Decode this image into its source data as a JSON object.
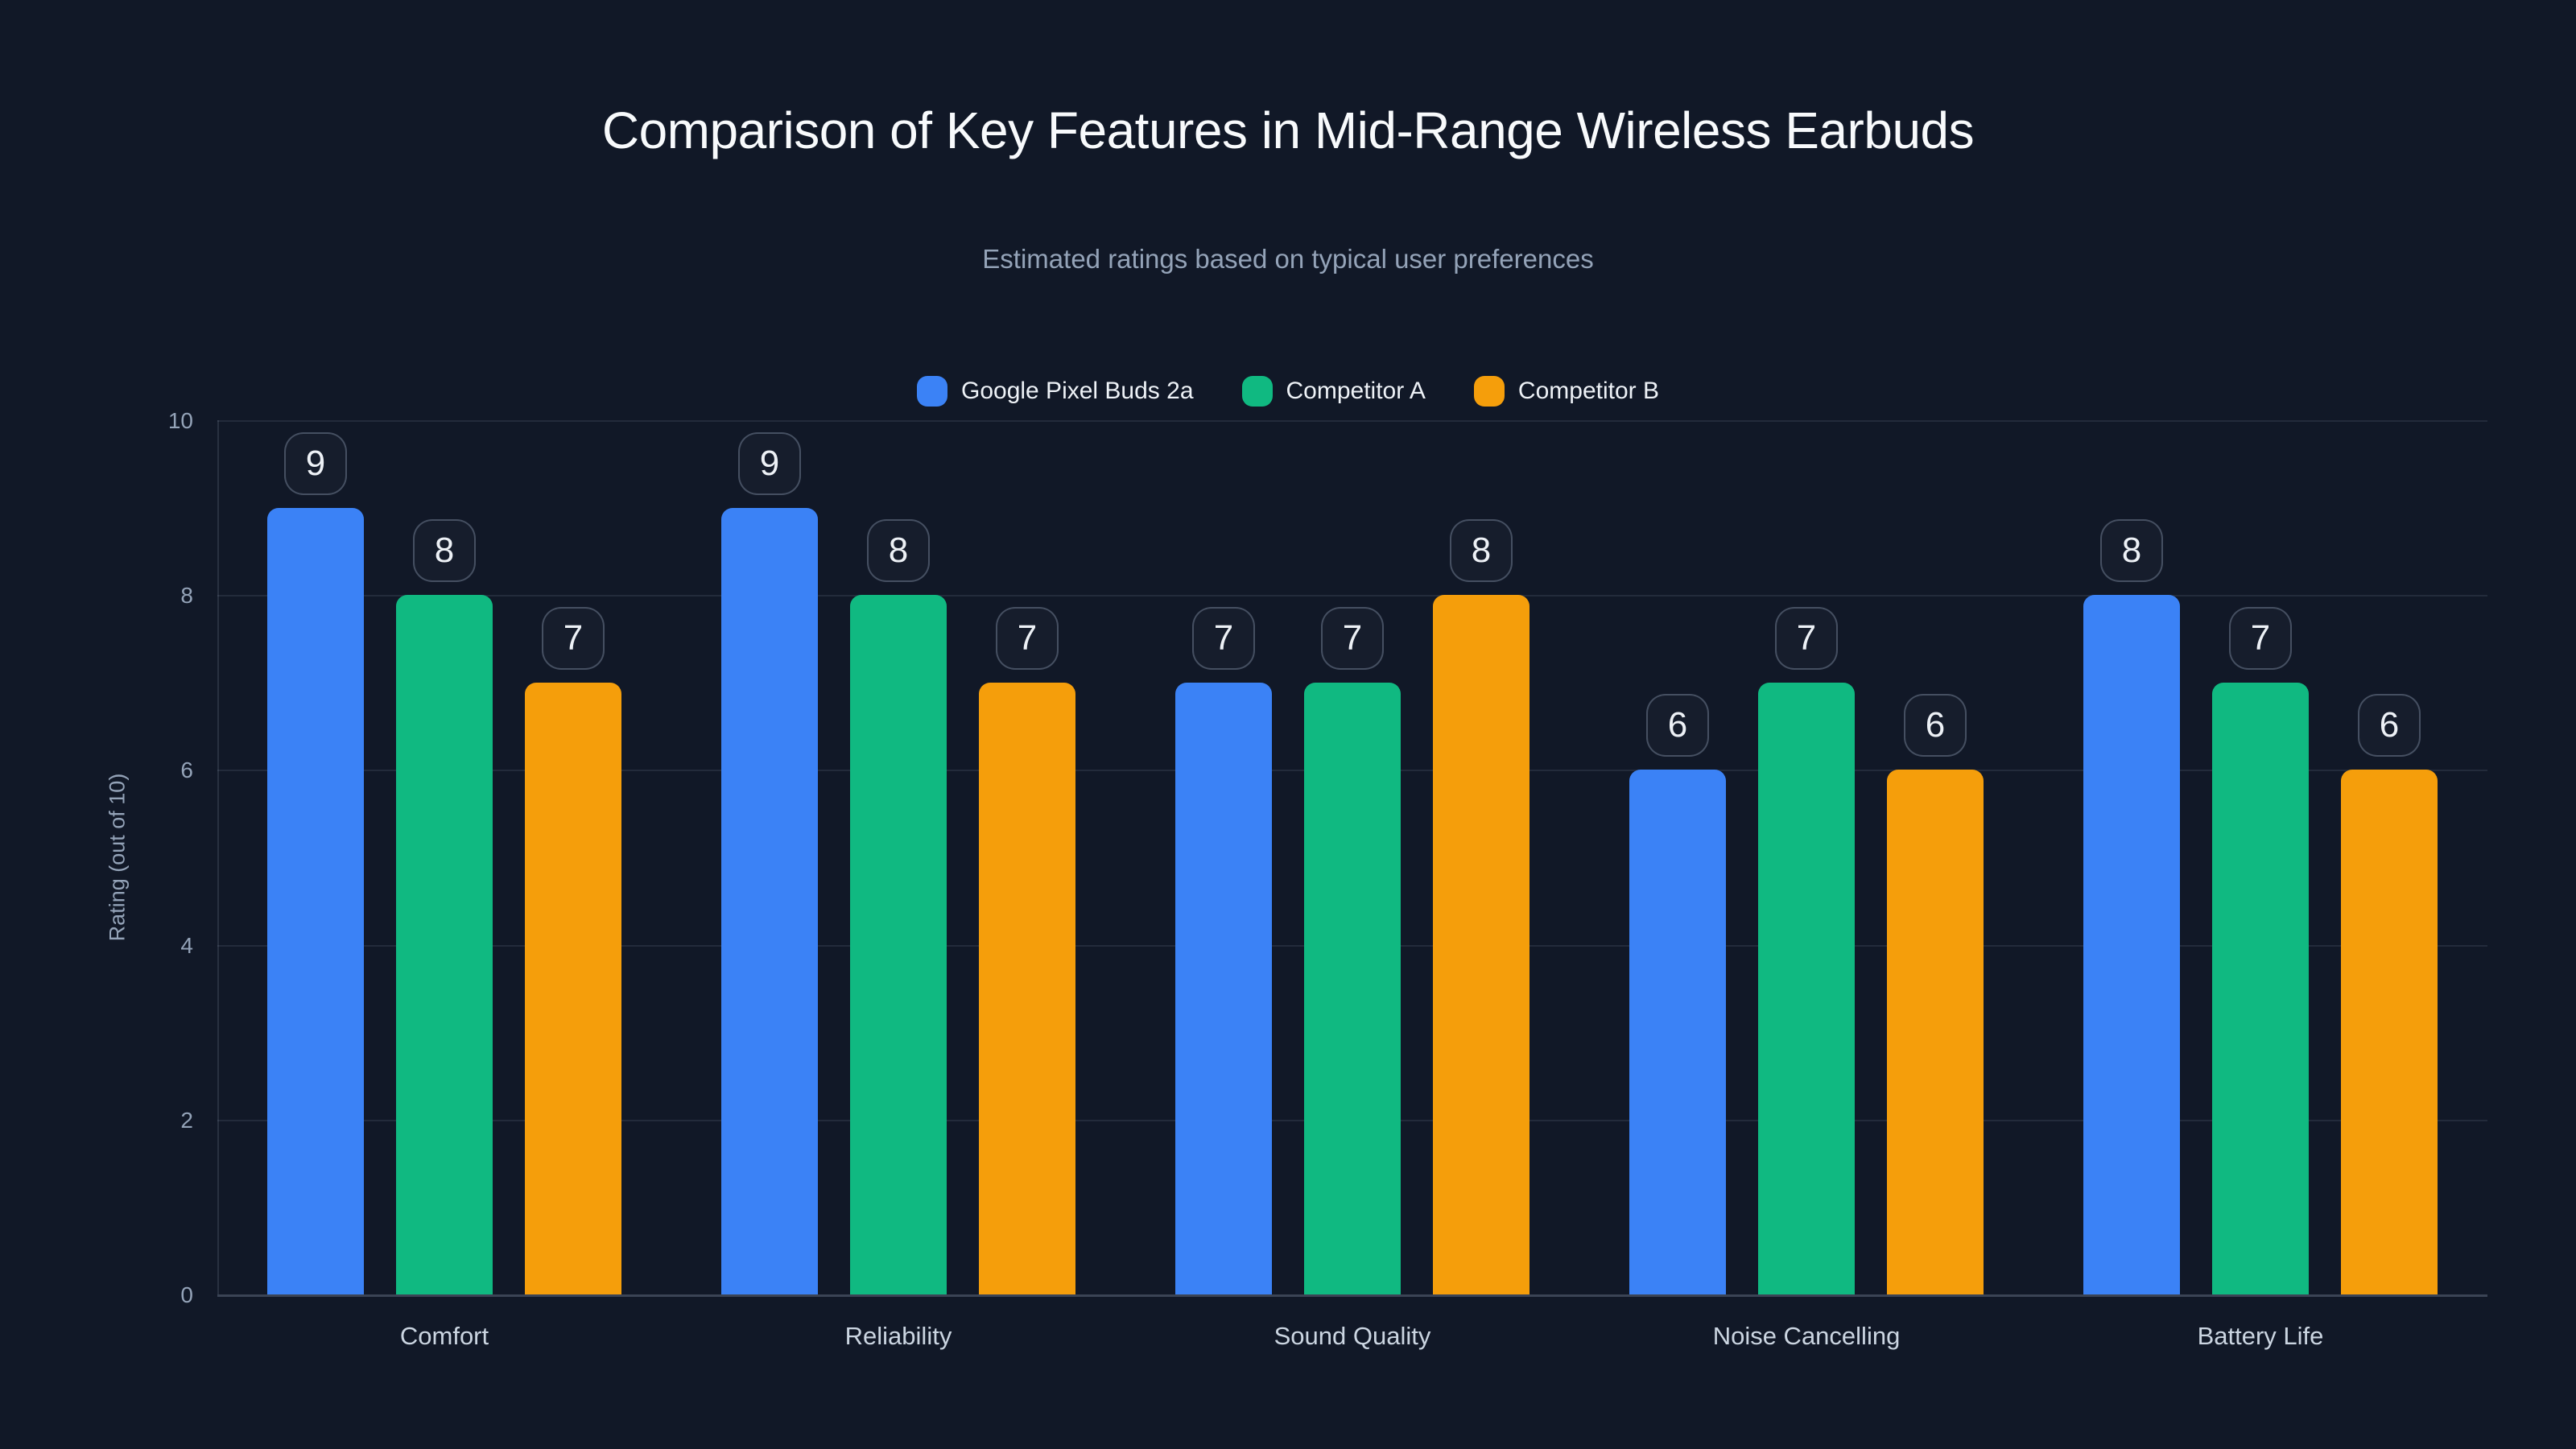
{
  "page": {
    "background_color": "#111827"
  },
  "chart_data": {
    "type": "bar",
    "title": "Comparison of Key Features in Mid-Range Wireless Earbuds",
    "subtitle": "Estimated ratings based on typical user preferences",
    "categories": [
      "Comfort",
      "Reliability",
      "Sound Quality",
      "Noise Cancelling",
      "Battery Life"
    ],
    "series": [
      {
        "name": "Google Pixel Buds 2a",
        "color": "#3b82f6",
        "values": [
          9,
          9,
          7,
          6,
          8
        ]
      },
      {
        "name": "Competitor A",
        "color": "#10b981",
        "values": [
          8,
          8,
          7,
          7,
          7
        ]
      },
      {
        "name": "Competitor B",
        "color": "#f59e0b",
        "values": [
          7,
          7,
          8,
          6,
          6
        ]
      }
    ],
    "xlabel": "",
    "ylabel": "Rating (out of 10)",
    "ylim": [
      0,
      10
    ],
    "yticks": [
      0,
      2,
      4,
      6,
      8,
      10
    ],
    "grid": true,
    "legend_position": "top",
    "value_labels": true,
    "value_label_style": "rounded-badge"
  }
}
